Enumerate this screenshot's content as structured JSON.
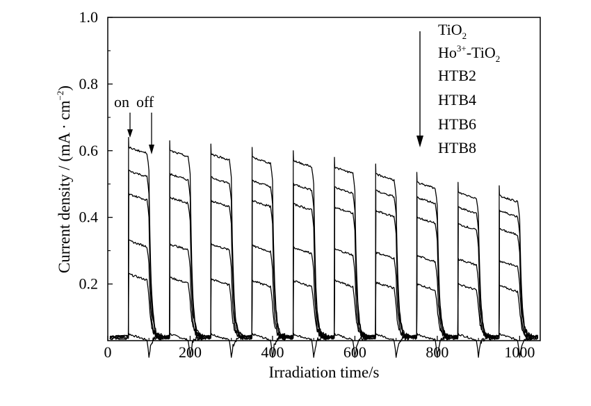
{
  "chart_data": {
    "type": "line",
    "xlabel": "Irradiation time/s",
    "ylabel": "Current density / (mA · cm",
    "ylabel_exp": "−2",
    "ylabel_close": ")",
    "xlim": [
      0,
      1050
    ],
    "ylim": [
      0.03,
      1.0
    ],
    "xticks": [
      0,
      200,
      400,
      600,
      800,
      1000
    ],
    "xtick_labels": [
      "0",
      "200",
      "400",
      "600",
      "800",
      "1000"
    ],
    "yticks": [
      0.2,
      0.4,
      0.6,
      0.8,
      1.0
    ],
    "ytick_labels": [
      "0.2",
      "0.4",
      "0.6",
      "0.8",
      "1.0"
    ],
    "grid": false,
    "light_on_times": [
      50,
      150,
      250,
      350,
      450,
      550,
      650,
      750,
      850,
      950
    ],
    "light_off_times": [
      100,
      200,
      300,
      400,
      500,
      600,
      700,
      800,
      900,
      1000
    ],
    "dark_current": 0.04,
    "series": [
      {
        "name": "TiO2",
        "on_values": [
          0.04,
          0.04,
          0.04,
          0.04,
          0.04,
          0.04,
          0.04,
          0.04,
          0.04,
          0.04
        ]
      },
      {
        "name": "Ho3+-TiO2",
        "on_values": [
          0.22,
          0.21,
          0.205,
          0.2,
          0.2,
          0.2,
          0.195,
          0.19,
          0.19,
          0.185
        ]
      },
      {
        "name": "HTB2",
        "on_values": [
          0.32,
          0.31,
          0.31,
          0.305,
          0.3,
          0.295,
          0.285,
          0.275,
          0.265,
          0.26
        ]
      },
      {
        "name": "HTB4",
        "on_values": [
          0.46,
          0.45,
          0.44,
          0.44,
          0.43,
          0.42,
          0.41,
          0.39,
          0.37,
          0.355
        ]
      },
      {
        "name": "HTB6",
        "on_values": [
          0.53,
          0.52,
          0.51,
          0.5,
          0.49,
          0.48,
          0.47,
          0.45,
          0.42,
          0.41
        ]
      },
      {
        "name": "HTB8",
        "on_values": [
          0.6,
          0.59,
          0.58,
          0.57,
          0.56,
          0.54,
          0.52,
          0.495,
          0.465,
          0.455
        ]
      }
    ],
    "legend": {
      "placement": "top-right",
      "entries": [
        {
          "main": "TiO",
          "sub": "2"
        },
        {
          "main": "Ho",
          "sup": "3+",
          "rest": "-TiO",
          "sub": "2"
        },
        {
          "main": "HTB2"
        },
        {
          "main": "HTB4"
        },
        {
          "main": "HTB6"
        },
        {
          "main": "HTB8"
        }
      ]
    },
    "annotation": {
      "on_label": "on",
      "off_label": "off"
    }
  }
}
